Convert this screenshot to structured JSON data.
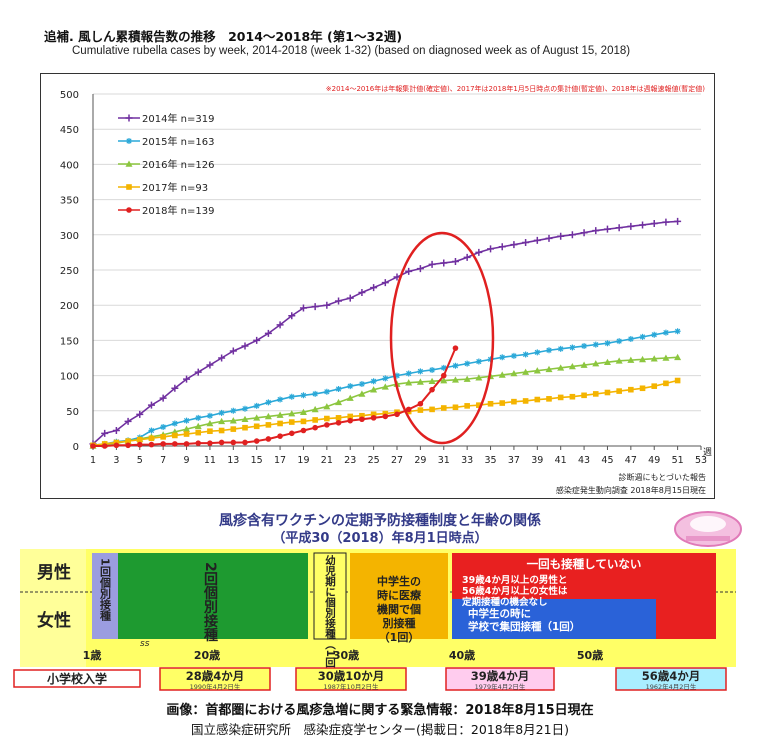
{
  "header": {
    "title_jp": "追補. 風しん累積報告数の推移　2014〜2018年 (第1〜32週)",
    "title_en": "Cumulative rubella cases by week, 2014-2018 (week 1-32)  (based on diagnosed week as of August 15, 2018)"
  },
  "chart_data": {
    "type": "line",
    "note": "※2014〜2016年は年報集計値(確定値)、2017年は2018年1月5日時点の集計値(暫定値)、2018年は週報速報値(暫定値)",
    "x_unit": "週",
    "source_1": "診断週にもとづいた報告",
    "source_2": "感染症発生動向調査 2018年8月15日現在",
    "ylim": [
      0,
      500
    ],
    "yticks": [
      0,
      50,
      100,
      150,
      200,
      250,
      300,
      350,
      400,
      450,
      500
    ],
    "xlim": [
      1,
      53
    ],
    "xticks": [
      1,
      3,
      5,
      7,
      9,
      11,
      13,
      15,
      17,
      19,
      21,
      23,
      25,
      27,
      29,
      31,
      33,
      35,
      37,
      39,
      41,
      43,
      45,
      47,
      49,
      51,
      53
    ],
    "legend_position": "top-left",
    "grid": true,
    "highlight_ellipse_weeks": [
      26,
      34
    ],
    "series": [
      {
        "name": "2014年 n=319",
        "color": "#7030a0",
        "marker": "plus",
        "values": [
          3,
          18,
          22,
          35,
          45,
          58,
          68,
          82,
          95,
          105,
          115,
          125,
          135,
          142,
          150,
          160,
          172,
          185,
          196,
          198,
          200,
          206,
          210,
          218,
          225,
          232,
          240,
          248,
          252,
          258,
          260,
          262,
          268,
          275,
          280,
          283,
          286,
          289,
          292,
          295,
          298,
          300,
          303,
          306,
          308,
          310,
          312,
          314,
          316,
          318,
          319
        ]
      },
      {
        "name": "2015年 n=163",
        "color": "#2aa8d8",
        "marker": "star",
        "values": [
          1,
          3,
          6,
          8,
          12,
          22,
          27,
          32,
          36,
          40,
          43,
          47,
          50,
          53,
          57,
          62,
          66,
          70,
          72,
          74,
          77,
          81,
          85,
          88,
          92,
          96,
          100,
          103,
          106,
          108,
          111,
          114,
          117,
          120,
          123,
          126,
          128,
          130,
          133,
          136,
          138,
          140,
          142,
          144,
          146,
          149,
          152,
          155,
          158,
          161,
          163
        ]
      },
      {
        "name": "2016年 n=126",
        "color": "#8cc63f",
        "marker": "triangle",
        "values": [
          0,
          2,
          4,
          7,
          10,
          13,
          16,
          20,
          24,
          28,
          32,
          35,
          36,
          38,
          40,
          42,
          44,
          46,
          48,
          52,
          56,
          62,
          68,
          74,
          80,
          84,
          88,
          90,
          91,
          92,
          93,
          94,
          95,
          97,
          99,
          101,
          103,
          105,
          107,
          109,
          111,
          113,
          115,
          117,
          119,
          121,
          122,
          123,
          124,
          125,
          126
        ]
      },
      {
        "name": "2017年 n=93",
        "color": "#f4b400",
        "marker": "square",
        "values": [
          1,
          3,
          5,
          7,
          9,
          11,
          13,
          15,
          17,
          19,
          21,
          22,
          24,
          26,
          28,
          30,
          32,
          34,
          35,
          37,
          39,
          40,
          42,
          43,
          45,
          46,
          48,
          49,
          51,
          52,
          54,
          55,
          57,
          58,
          60,
          61,
          63,
          64,
          66,
          67,
          69,
          70,
          72,
          74,
          76,
          78,
          80,
          82,
          85,
          89,
          93
        ]
      },
      {
        "name": "2018年 n=139",
        "color": "#e02020",
        "marker": "circle",
        "values": [
          0,
          0,
          1,
          1,
          2,
          2,
          3,
          3,
          3,
          4,
          4,
          5,
          5,
          5,
          7,
          10,
          14,
          18,
          22,
          26,
          30,
          33,
          36,
          38,
          40,
          42,
          45,
          52,
          60,
          80,
          100,
          139
        ]
      }
    ]
  },
  "vaccine": {
    "title": "風疹含有ワクチンの定期予防接種制度と年齢の関係",
    "subtitle": "（平成30（2018）年8月1日時点）",
    "row_male": "男性",
    "row_female": "女性",
    "seg_one_individual": "1回個別接種",
    "seg_two_individual": "2回個別接種",
    "seg_infant": "幼児期に個別接種（1回）",
    "seg_middle_individual": "中学生の時に医療機関で個別接種（1回）",
    "seg_never": "一回も接種していない",
    "seg_never_note": "39歳4か月以上の男性と56歳4か月以上の女性は定期接種の機会なし",
    "seg_middle_group": "中学生の時に学校で集団接種（1回）",
    "axis_ticks": [
      "1歳",
      "20歳",
      "30歳",
      "40歳",
      "50歳"
    ],
    "axis_break": "ss",
    "label_primary": "小学校入学",
    "tag_28": "28歳4か月",
    "tag_28_date": "1990年4月2日生",
    "tag_30": "30歳10か月",
    "tag_30_date": "1987年10月2日生",
    "tag_39": "39歳4か月",
    "tag_39_date": "1979年4月2日生",
    "tag_56": "56歳4か月",
    "tag_56_date": "1962年4月2日生"
  },
  "footer": {
    "line1": "画像：首都圏における風疹急増に関する緊急情報：2018年8月15日現在",
    "line2": "国立感染症研究所　感染症疫学センター(掲載日：2018年8月21日)"
  }
}
